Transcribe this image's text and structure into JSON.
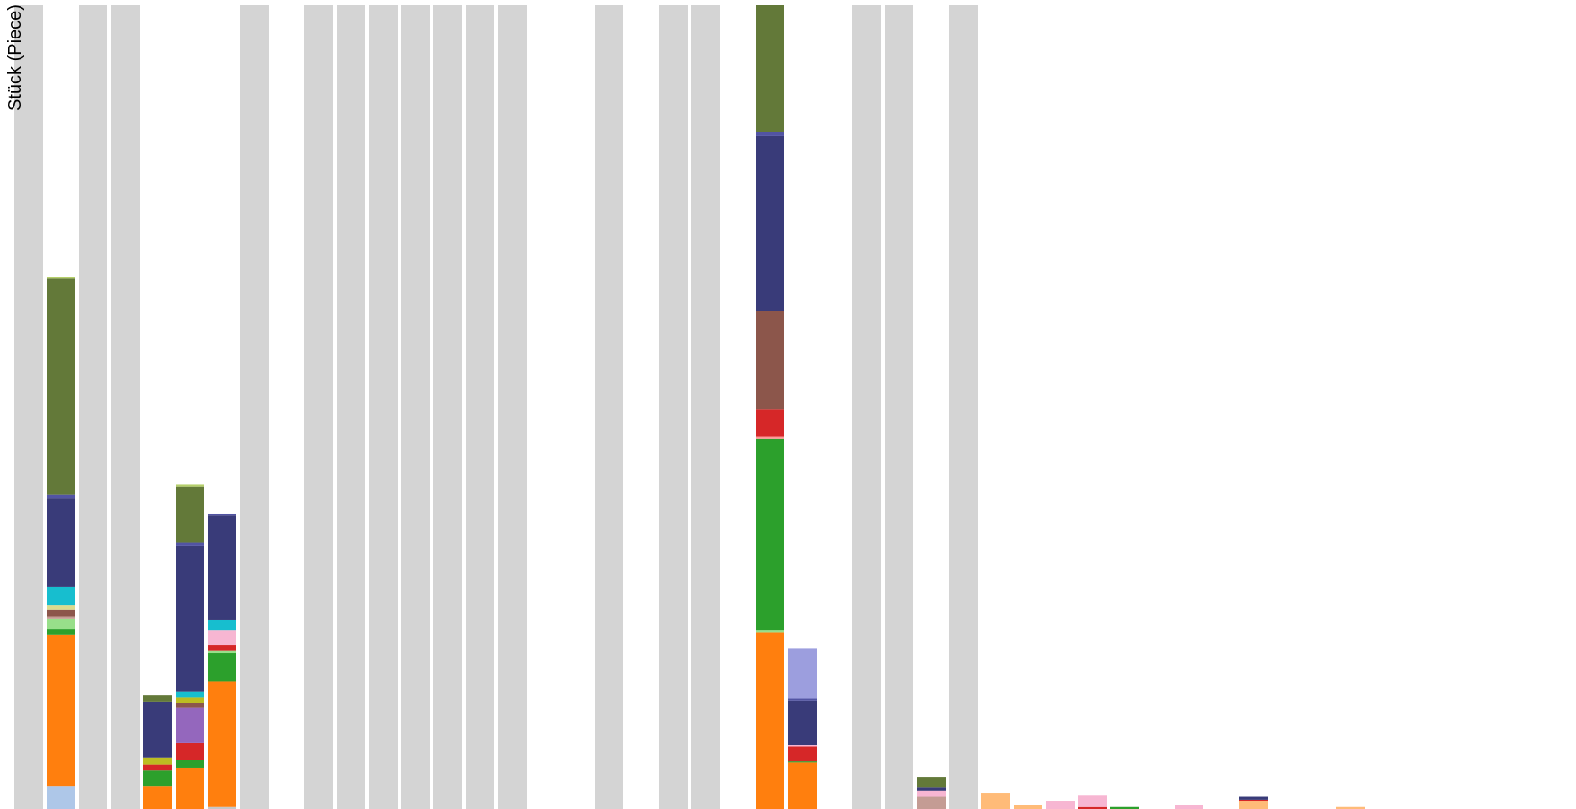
{
  "chart_data": {
    "type": "bar",
    "stacked": true,
    "ylabel": "Stück (Piece)",
    "ylim": [
      0,
      800
    ],
    "grid": false,
    "legend": "none",
    "background_column_color": "#d4d4d4",
    "columns": [
      {
        "highlighted": true,
        "segments": []
      },
      {
        "highlighted": false,
        "segments": [
          {
            "color": "#aec7e8",
            "value": 23
          },
          {
            "color": "#ff7f0e",
            "value": 150
          },
          {
            "color": "#2ca02c",
            "value": 6
          },
          {
            "color": "#98df8a",
            "value": 10
          },
          {
            "color": "#c49c94",
            "value": 3
          },
          {
            "color": "#8c564b",
            "value": 6
          },
          {
            "color": "#dbdb8d",
            "value": 5
          },
          {
            "color": "#17becf",
            "value": 18
          },
          {
            "color": "#393b79",
            "value": 88
          },
          {
            "color": "#5254a3",
            "value": 4
          },
          {
            "color": "#637939",
            "value": 215
          },
          {
            "color": "#b5cf6b",
            "value": 2
          }
        ]
      },
      {
        "highlighted": true,
        "segments": []
      },
      {
        "highlighted": true,
        "segments": []
      },
      {
        "highlighted": false,
        "segments": [
          {
            "color": "#ff7f0e",
            "value": 23
          },
          {
            "color": "#2ca02c",
            "value": 16
          },
          {
            "color": "#d62728",
            "value": 5
          },
          {
            "color": "#bcbd22",
            "value": 7
          },
          {
            "color": "#393b79",
            "value": 56
          },
          {
            "color": "#637939",
            "value": 6
          }
        ]
      },
      {
        "highlighted": false,
        "segments": [
          {
            "color": "#ff7f0e",
            "value": 41
          },
          {
            "color": "#2ca02c",
            "value": 8
          },
          {
            "color": "#d62728",
            "value": 17
          },
          {
            "color": "#9467bd",
            "value": 35
          },
          {
            "color": "#8c564b",
            "value": 5
          },
          {
            "color": "#bcbd22",
            "value": 5
          },
          {
            "color": "#17becf",
            "value": 6
          },
          {
            "color": "#393b79",
            "value": 145
          },
          {
            "color": "#5254a3",
            "value": 3
          },
          {
            "color": "#637939",
            "value": 56
          },
          {
            "color": "#b5cf6b",
            "value": 2
          }
        ]
      },
      {
        "highlighted": false,
        "segments": [
          {
            "color": "#c7c7c7",
            "value": 2
          },
          {
            "color": "#ff7f0e",
            "value": 125
          },
          {
            "color": "#2ca02c",
            "value": 28
          },
          {
            "color": "#98df8a",
            "value": 3
          },
          {
            "color": "#d62728",
            "value": 5
          },
          {
            "color": "#f7b6d2",
            "value": 15
          },
          {
            "color": "#17becf",
            "value": 10
          },
          {
            "color": "#393b79",
            "value": 104
          },
          {
            "color": "#5254a3",
            "value": 2
          }
        ]
      },
      {
        "highlighted": true,
        "segments": []
      },
      {
        "highlighted": false,
        "segments": []
      },
      {
        "highlighted": true,
        "segments": []
      },
      {
        "highlighted": true,
        "segments": []
      },
      {
        "highlighted": true,
        "segments": []
      },
      {
        "highlighted": true,
        "segments": []
      },
      {
        "highlighted": true,
        "segments": []
      },
      {
        "highlighted": true,
        "segments": []
      },
      {
        "highlighted": true,
        "segments": []
      },
      {
        "highlighted": false,
        "segments": []
      },
      {
        "highlighted": false,
        "segments": []
      },
      {
        "highlighted": true,
        "segments": []
      },
      {
        "highlighted": false,
        "segments": []
      },
      {
        "highlighted": true,
        "segments": []
      },
      {
        "highlighted": true,
        "segments": []
      },
      {
        "highlighted": false,
        "segments": []
      },
      {
        "highlighted": false,
        "segments": [
          {
            "color": "#ff7f0e",
            "value": 176
          },
          {
            "color": "#98df8a",
            "value": 2
          },
          {
            "color": "#2ca02c",
            "value": 191
          },
          {
            "color": "#ff9896",
            "value": 2
          },
          {
            "color": "#d62728",
            "value": 27
          },
          {
            "color": "#8c564b",
            "value": 98
          },
          {
            "color": "#393b79",
            "value": 174
          },
          {
            "color": "#5254a3",
            "value": 4
          },
          {
            "color": "#637939",
            "value": 126
          }
        ]
      },
      {
        "highlighted": false,
        "segments": [
          {
            "color": "#ff7f0e",
            "value": 46
          },
          {
            "color": "#2ca02c",
            "value": 2
          },
          {
            "color": "#d62728",
            "value": 14
          },
          {
            "color": "#f7b6d2",
            "value": 2
          },
          {
            "color": "#393b79",
            "value": 44
          },
          {
            "color": "#5254a3",
            "value": 2
          },
          {
            "color": "#9c9ede",
            "value": 50
          }
        ]
      },
      {
        "highlighted": false,
        "segments": []
      },
      {
        "highlighted": true,
        "segments": []
      },
      {
        "highlighted": true,
        "segments": []
      },
      {
        "highlighted": false,
        "segments": [
          {
            "color": "#c49c94",
            "value": 12
          },
          {
            "color": "#f7b6d2",
            "value": 6
          },
          {
            "color": "#393b79",
            "value": 4
          },
          {
            "color": "#637939",
            "value": 10
          }
        ]
      },
      {
        "highlighted": true,
        "segments": []
      },
      {
        "highlighted": false,
        "segments": [
          {
            "color": "#ffbb78",
            "value": 16
          }
        ]
      },
      {
        "highlighted": false,
        "segments": [
          {
            "color": "#ffbb78",
            "value": 4
          }
        ]
      },
      {
        "highlighted": false,
        "segments": [
          {
            "color": "#f7b6d2",
            "value": 8
          }
        ]
      },
      {
        "highlighted": false,
        "segments": [
          {
            "color": "#d62728",
            "value": 2
          },
          {
            "color": "#f7b6d2",
            "value": 12
          }
        ]
      },
      {
        "highlighted": false,
        "segments": [
          {
            "color": "#2ca02c",
            "value": 2
          }
        ]
      },
      {
        "highlighted": false,
        "segments": []
      },
      {
        "highlighted": false,
        "segments": [
          {
            "color": "#f7b6d2",
            "value": 4
          }
        ]
      },
      {
        "highlighted": false,
        "segments": []
      },
      {
        "highlighted": false,
        "segments": [
          {
            "color": "#ffbb78",
            "value": 8
          },
          {
            "color": "#d62728",
            "value": 1
          },
          {
            "color": "#393b79",
            "value": 3
          }
        ]
      },
      {
        "highlighted": false,
        "segments": []
      },
      {
        "highlighted": false,
        "segments": []
      },
      {
        "highlighted": false,
        "segments": [
          {
            "color": "#ffbb78",
            "value": 2
          }
        ]
      }
    ]
  }
}
